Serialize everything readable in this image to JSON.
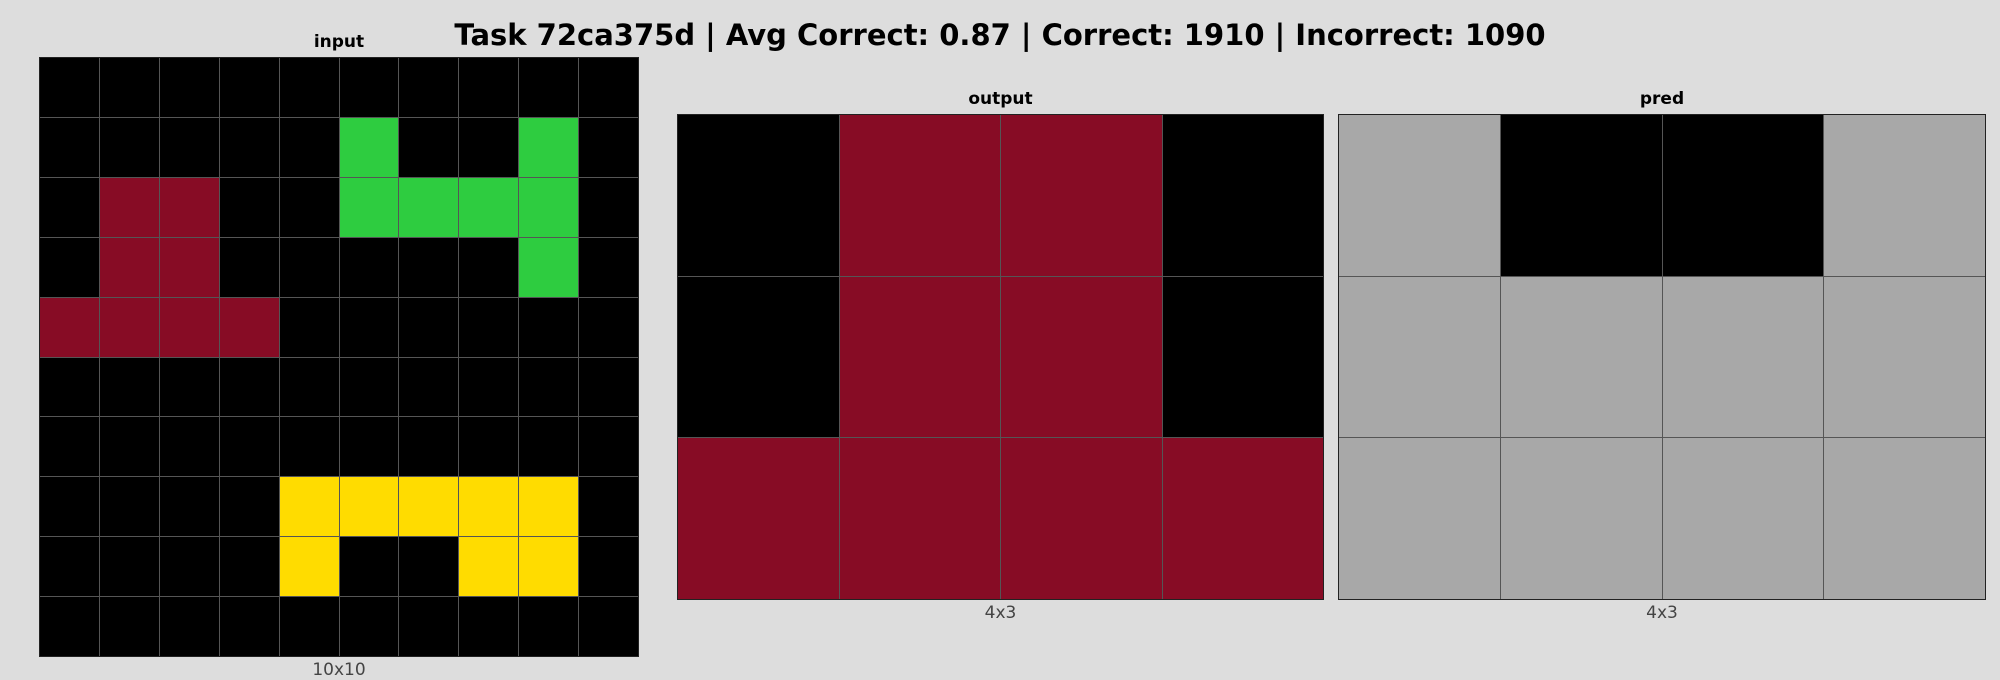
{
  "title": "Task 72ca375d | Avg Correct: 0.87 | Correct: 1910 | Incorrect: 1090",
  "palette": {
    "0": "#000000",
    "2": "#870c25",
    "3": "#2ecc40",
    "4": "#ffdc00",
    "x": "#a8a8a8"
  },
  "panels": {
    "input": {
      "label": "input",
      "size_label": "10x10",
      "rows": [
        [
          "0",
          "0",
          "0",
          "0",
          "0",
          "0",
          "0",
          "0",
          "0",
          "0"
        ],
        [
          "0",
          "0",
          "0",
          "0",
          "0",
          "3",
          "0",
          "0",
          "3",
          "0"
        ],
        [
          "0",
          "2",
          "2",
          "0",
          "0",
          "3",
          "3",
          "3",
          "3",
          "0"
        ],
        [
          "0",
          "2",
          "2",
          "0",
          "0",
          "0",
          "0",
          "0",
          "3",
          "0"
        ],
        [
          "2",
          "2",
          "2",
          "2",
          "0",
          "0",
          "0",
          "0",
          "0",
          "0"
        ],
        [
          "0",
          "0",
          "0",
          "0",
          "0",
          "0",
          "0",
          "0",
          "0",
          "0"
        ],
        [
          "0",
          "0",
          "0",
          "0",
          "0",
          "0",
          "0",
          "0",
          "0",
          "0"
        ],
        [
          "0",
          "0",
          "0",
          "0",
          "4",
          "4",
          "4",
          "4",
          "4",
          "0"
        ],
        [
          "0",
          "0",
          "0",
          "0",
          "4",
          "0",
          "0",
          "4",
          "4",
          "0"
        ],
        [
          "0",
          "0",
          "0",
          "0",
          "0",
          "0",
          "0",
          "0",
          "0",
          "0"
        ]
      ]
    },
    "output": {
      "label": "output",
      "size_label": "4x3",
      "rows": [
        [
          "0",
          "2",
          "2",
          "0"
        ],
        [
          "0",
          "2",
          "2",
          "0"
        ],
        [
          "2",
          "2",
          "2",
          "2"
        ]
      ]
    },
    "pred": {
      "label": "pred",
      "size_label": "4x3",
      "rows": [
        [
          "x",
          "0",
          "0",
          "x"
        ],
        [
          "x",
          "x",
          "x",
          "x"
        ],
        [
          "x",
          "x",
          "x",
          "x"
        ]
      ]
    }
  }
}
